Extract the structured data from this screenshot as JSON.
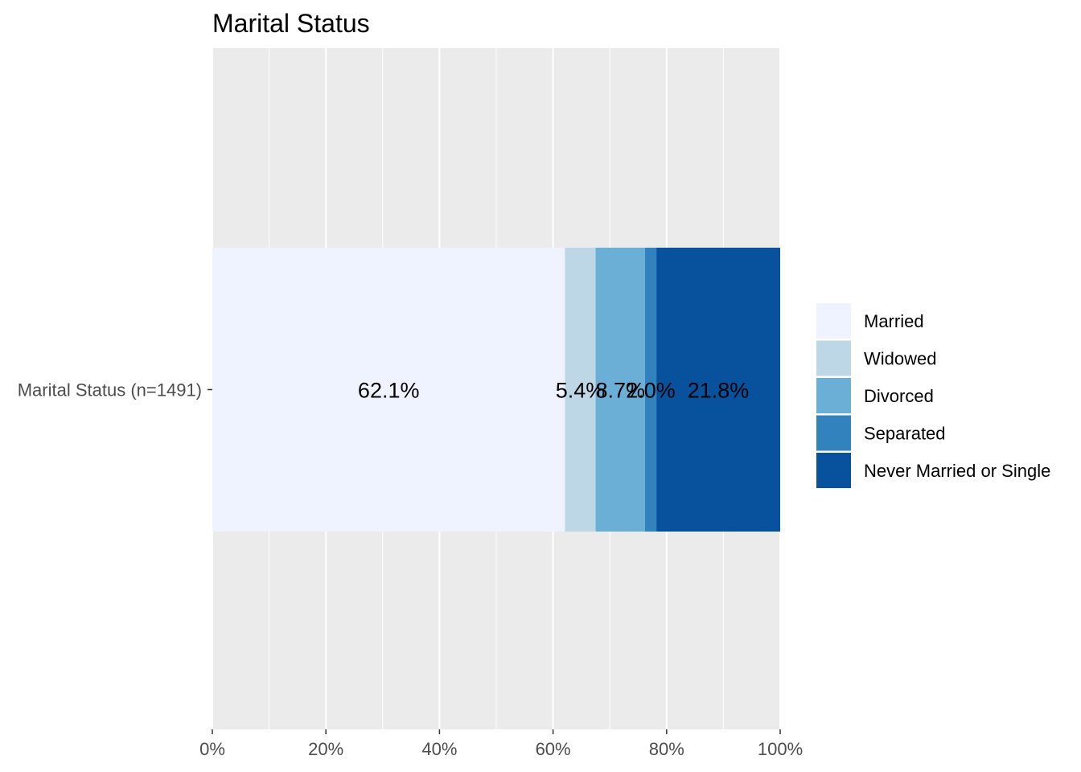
{
  "chart_data": {
    "type": "bar",
    "orientation": "horizontal",
    "stacked": true,
    "title": "Marital Status",
    "xlabel": "",
    "ylabel": "",
    "categories": [
      "Marital Status (n=1491)"
    ],
    "xlim": [
      0,
      100
    ],
    "x_ticks": [
      {
        "value": 0,
        "label": "0%"
      },
      {
        "value": 20,
        "label": "20%"
      },
      {
        "value": 40,
        "label": "40%"
      },
      {
        "value": 60,
        "label": "60%"
      },
      {
        "value": 80,
        "label": "80%"
      },
      {
        "value": 100,
        "label": "100%"
      }
    ],
    "grid": true,
    "legend_position": "right",
    "series": [
      {
        "name": "Married",
        "values": [
          62.1
        ],
        "label": "62.1%",
        "color": "#EFF3FF"
      },
      {
        "name": "Widowed",
        "values": [
          5.4
        ],
        "label": "5.4%",
        "color": "#BDD7E7"
      },
      {
        "name": "Divorced",
        "values": [
          8.7
        ],
        "label": "8.7%",
        "color": "#6BAED6"
      },
      {
        "name": "Separated",
        "values": [
          2.0
        ],
        "label": "2.0%",
        "color": "#3182BD"
      },
      {
        "name": "Never Married or Single",
        "values": [
          21.8
        ],
        "label": "21.8%",
        "color": "#08519C"
      }
    ]
  },
  "colors": {
    "panel_background": "#EBEBEB",
    "grid_line": "#FFFFFF",
    "tick_text": "#4D4D4D",
    "tick_mark": "#333333"
  }
}
